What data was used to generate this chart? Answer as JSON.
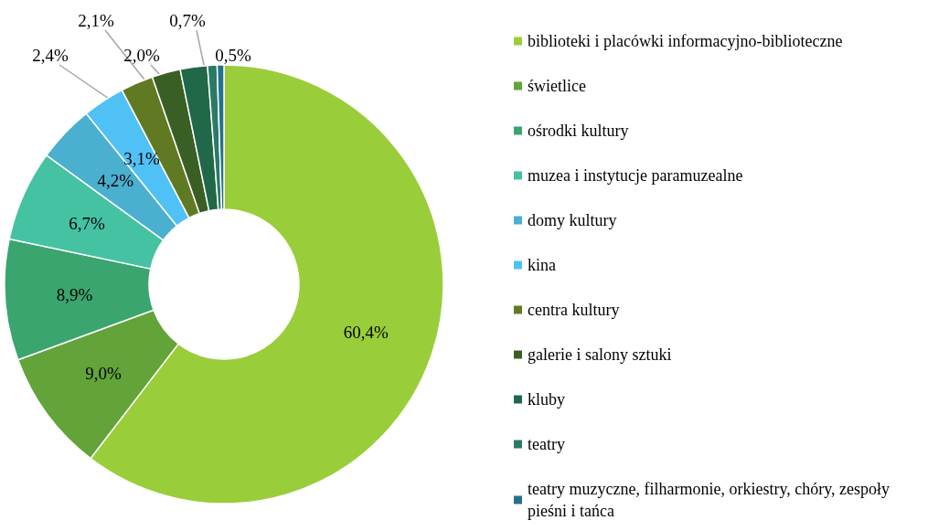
{
  "chart_data": {
    "type": "donut",
    "categories": [
      "biblioteki i placówki informacyjno-biblioteczne",
      "świetlice",
      "ośrodki kultury",
      "muzea i instytucje paramuzealne",
      "domy kultury",
      "kina",
      "centra kultury",
      "galerie i salony sztuki",
      "kluby",
      "teatry",
      "teatry muzyczne, filharmonie, orkiestry, chóry, zespoły pieśni i tańca"
    ],
    "values": [
      60.4,
      9.0,
      8.9,
      6.7,
      4.2,
      3.1,
      2.4,
      2.1,
      2.0,
      0.7,
      0.5
    ],
    "value_labels": [
      "60,4%",
      "9,0%",
      "8,9%",
      "6,7%",
      "4,2%",
      "3,1%",
      "2,4%",
      "2,1%",
      "2,0%",
      "0,7%",
      "0,5%"
    ],
    "colors": [
      "#9acd3a",
      "#62a33a",
      "#3aa56e",
      "#45c2a2",
      "#4bafcf",
      "#4fc1f5",
      "#607a23",
      "#3a5f24",
      "#206848",
      "#2a7a66",
      "#26708f"
    ],
    "legend": "right"
  }
}
